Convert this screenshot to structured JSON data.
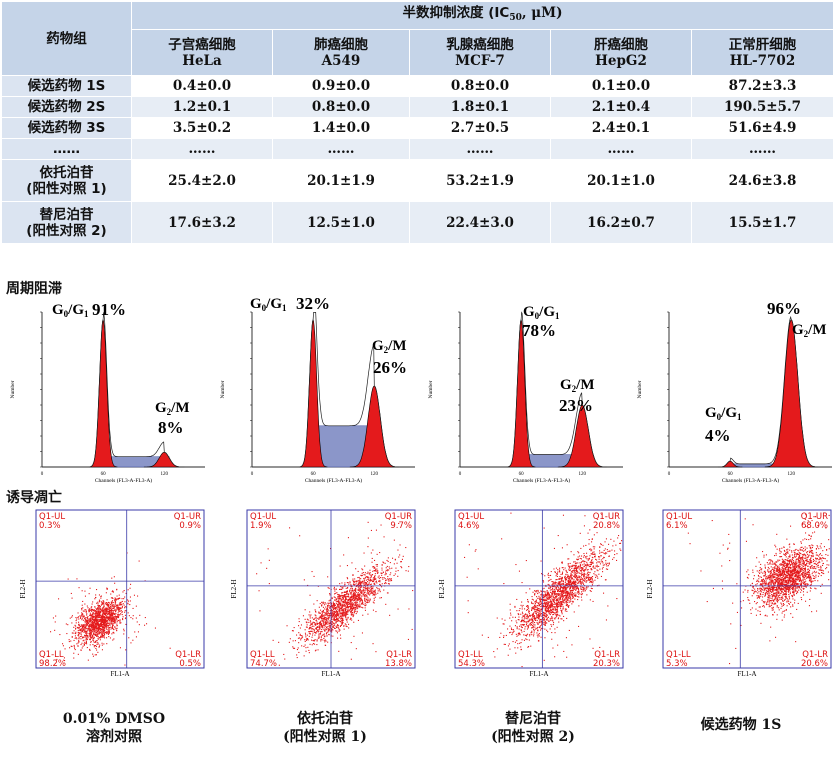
{
  "table": {
    "drug_group_header": "药物组",
    "ic50_header": "半数抑制浓度 (IC",
    "ic50_sub": "50",
    "ic50_unit": ", μM)",
    "columns": [
      {
        "cn": "子宫癌细胞",
        "en": "HeLa"
      },
      {
        "cn": "肺癌细胞",
        "en": "A549"
      },
      {
        "cn": "乳腺癌细胞",
        "en": "MCF-7"
      },
      {
        "cn": "肝癌细胞",
        "en": "HepG2"
      },
      {
        "cn": "正常肝细胞",
        "en": "HL-7702"
      }
    ],
    "rows": [
      {
        "label1": "候选药物 1S",
        "label2": "",
        "values": [
          "0.4±0.0",
          "0.9±0.0",
          "0.8±0.0",
          "0.1±0.0",
          "87.2±3.3"
        ]
      },
      {
        "label1": "候选药物 2S",
        "label2": "",
        "values": [
          "1.2±0.1",
          "0.8±0.0",
          "1.8±0.1",
          "2.1±0.4",
          "190.5±5.7"
        ]
      },
      {
        "label1": "候选药物 3S",
        "label2": "",
        "values": [
          "3.5±0.2",
          "1.4±0.0",
          "2.7±0.5",
          "2.4±0.1",
          "51.6±4.9"
        ]
      },
      {
        "label1": "……",
        "label2": "",
        "values": [
          "……",
          "……",
          "……",
          "……",
          "……"
        ]
      },
      {
        "label1": "依托泊苷",
        "label2": "(阳性对照 1)",
        "values": [
          "25.4±2.0",
          "20.1±1.9",
          "53.2±1.9",
          "20.1±1.0",
          "24.6±3.8"
        ]
      },
      {
        "label1": "替尼泊苷",
        "label2": "(阳性对照 2)",
        "values": [
          "17.6±3.2",
          "12.5±1.0",
          "22.4±3.0",
          "16.2±0.7",
          "15.5±1.7"
        ]
      }
    ]
  },
  "cell_cycle": {
    "section_label": "周期阻滞",
    "y_label": "Number",
    "x_label": "Channels (FL3-A-FL3-A)",
    "panels": [
      {
        "g0g1_label": "G0/G1",
        "g0g1_pct": "91%",
        "g2m_label": "G2/M",
        "g2m_pct": "8%",
        "ticks": [
          "0",
          "60",
          "120"
        ]
      },
      {
        "g0g1_label": "G0/G1",
        "g0g1_pct": "32%",
        "g2m_label": "G2/M",
        "g2m_pct": "26%",
        "ticks": [
          "0",
          "60",
          "120"
        ]
      },
      {
        "g0g1_label": "G0/G1",
        "g0g1_pct": "78%",
        "g2m_label": "G2/M",
        "g2m_pct": "23%",
        "ticks": [
          "0",
          "60",
          "120"
        ]
      },
      {
        "g0g1_label": "G0/G1",
        "g0g1_pct": "4%",
        "g2m_label": "G2/M",
        "g2m_pct": "96%",
        "ticks": [
          "0",
          "60",
          "120"
        ]
      }
    ]
  },
  "apoptosis": {
    "section_label": "诱导凋亡",
    "x_label": "FL1-A",
    "y_label": "FL2-H",
    "quad_labels": [
      "Q1-UL",
      "Q1-UR",
      "Q1-LL",
      "Q1-LR"
    ],
    "panels": [
      {
        "ul": "0.3%",
        "ur": "0.9%",
        "ll": "98.2%",
        "lr": "0.5%",
        "caption1": "0.01% DMSO",
        "caption2": "溶剂对照"
      },
      {
        "ul": "1.9%",
        "ur": "9.7%",
        "ll": "74.7%",
        "lr": "13.8%",
        "caption1": "依托泊苷",
        "caption2": "(阳性对照 1)"
      },
      {
        "ul": "4.6%",
        "ur": "20.8%",
        "ll": "54.3%",
        "lr": "20.3%",
        "caption1": "替尼泊苷",
        "caption2": "(阳性对照 2)"
      },
      {
        "ul": "6.1%",
        "ur": "68.0%",
        "ll": "5.3%",
        "lr": "20.6%",
        "caption1": "候选药物 1S",
        "caption2": ""
      }
    ]
  },
  "colors": {
    "header_bg": "#c5d4e8",
    "row_bg": "#e7edf5",
    "red": "#e41a1c",
    "blue_fill": "#8b96c9",
    "frame_blue": "#3a3aa8"
  }
}
